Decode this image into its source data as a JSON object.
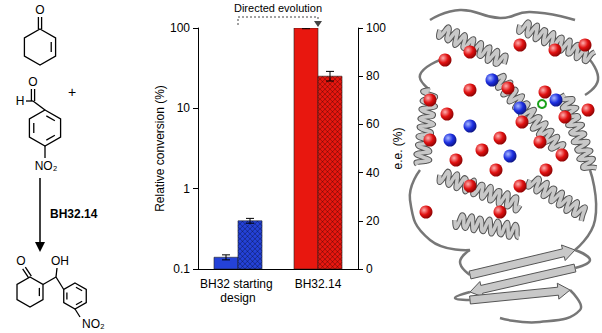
{
  "chart_data": {
    "type": "bar",
    "categories": [
      "BH32 starting design",
      "BH32.14"
    ],
    "series": [
      {
        "name": "Relative conversion (%)",
        "colors": [
          "#2442d8",
          "#e8170f"
        ],
        "values": [
          0.14,
          100
        ],
        "errors": [
          0.01,
          2
        ]
      },
      {
        "name": "e.e. (%)",
        "axis": "y2",
        "colors": [
          "#2442d8",
          "#e8170f"
        ],
        "values": [
          20,
          80
        ],
        "errors": [
          1,
          2
        ],
        "marker": "hatched"
      }
    ],
    "ylabel": "Relative conversion (%)",
    "y2label": "e.e. (%)",
    "log": "y",
    "ylim": [
      0.1,
      100
    ],
    "yticks": [
      0.1,
      1,
      10,
      100
    ],
    "y2lim": [
      0,
      100
    ],
    "y2ticks": [
      0,
      20,
      40,
      60,
      80,
      100
    ],
    "grid": false,
    "annotations": [
      {
        "text": "Directed evolution",
        "from": "BH32 starting design",
        "to": "BH32.14"
      }
    ]
  },
  "scheme": {
    "reactants": [
      {
        "labels": [
          "O"
        ]
      },
      {
        "labels": [
          "O",
          "H",
          "NO₂"
        ]
      }
    ],
    "plus": "+",
    "catalyst": "BH32.14",
    "product": {
      "labels": [
        "O",
        "OH",
        "NO₂"
      ]
    }
  }
}
